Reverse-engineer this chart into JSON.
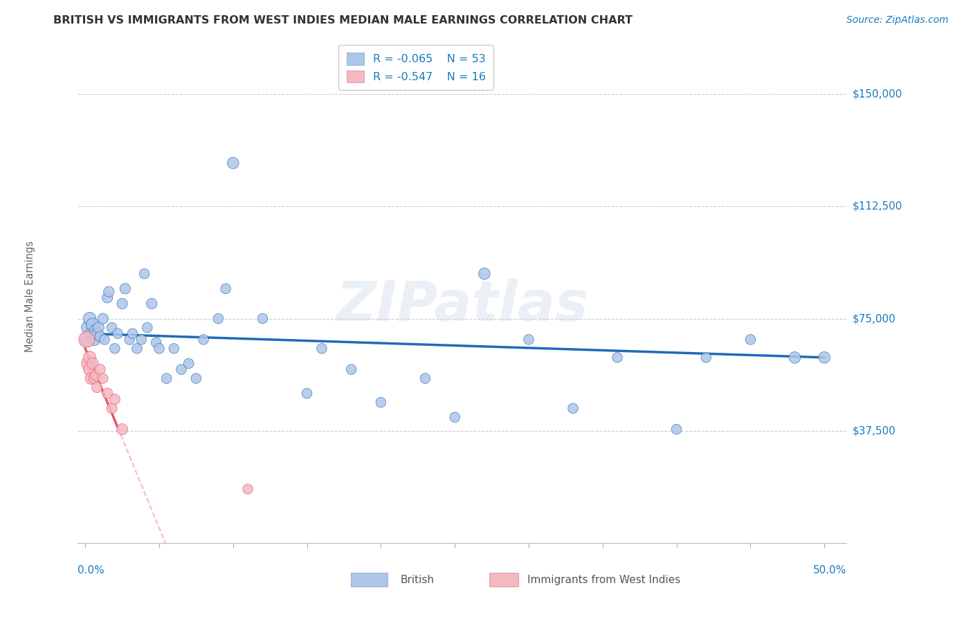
{
  "title": "BRITISH VS IMMIGRANTS FROM WEST INDIES MEDIAN MALE EARNINGS CORRELATION CHART",
  "source": "Source: ZipAtlas.com",
  "ylabel": "Median Male Earnings",
  "y_tick_labels": [
    "$37,500",
    "$75,000",
    "$112,500",
    "$150,000"
  ],
  "y_tick_values": [
    37500,
    75000,
    112500,
    150000
  ],
  "y_min": 0,
  "y_max": 165000,
  "x_min": -0.005,
  "x_max": 0.515,
  "watermark": "ZIPatlas",
  "legend_r1": "R = -0.065",
  "legend_n1": "N = 53",
  "legend_r2": "R = -0.547",
  "legend_n2": "N = 16",
  "legend_label1": "British",
  "legend_label2": "Immigrants from West Indies",
  "color_british": "#aec6e8",
  "color_wi": "#f4b8c1",
  "color_line_british": "#1f6ab5",
  "color_line_wi": "#e8536a",
  "color_axis_labels": "#1a7abf",
  "british_x": [
    0.001,
    0.002,
    0.003,
    0.004,
    0.005,
    0.006,
    0.007,
    0.008,
    0.009,
    0.01,
    0.012,
    0.013,
    0.015,
    0.016,
    0.018,
    0.02,
    0.022,
    0.025,
    0.027,
    0.03,
    0.032,
    0.035,
    0.038,
    0.04,
    0.042,
    0.045,
    0.048,
    0.05,
    0.055,
    0.06,
    0.065,
    0.07,
    0.075,
    0.08,
    0.09,
    0.095,
    0.1,
    0.12,
    0.15,
    0.16,
    0.18,
    0.2,
    0.23,
    0.25,
    0.27,
    0.3,
    0.33,
    0.36,
    0.4,
    0.42,
    0.45,
    0.48,
    0.5
  ],
  "british_y": [
    68000,
    72000,
    75000,
    70000,
    73000,
    68000,
    71000,
    70000,
    72000,
    69000,
    75000,
    68000,
    82000,
    84000,
    72000,
    65000,
    70000,
    80000,
    85000,
    68000,
    70000,
    65000,
    68000,
    90000,
    72000,
    80000,
    67000,
    65000,
    55000,
    65000,
    58000,
    60000,
    55000,
    68000,
    75000,
    85000,
    127000,
    75000,
    50000,
    65000,
    58000,
    47000,
    55000,
    42000,
    90000,
    68000,
    45000,
    62000,
    38000,
    62000,
    68000,
    62000,
    62000
  ],
  "wi_x": [
    0.001,
    0.002,
    0.003,
    0.003,
    0.004,
    0.005,
    0.006,
    0.007,
    0.008,
    0.01,
    0.012,
    0.015,
    0.018,
    0.02,
    0.025,
    0.11
  ],
  "wi_y": [
    68000,
    60000,
    62000,
    58000,
    55000,
    60000,
    55000,
    56000,
    52000,
    58000,
    55000,
    50000,
    45000,
    48000,
    38000,
    18000
  ],
  "british_bubble_sizes": [
    200,
    180,
    160,
    140,
    160,
    150,
    140,
    130,
    120,
    110,
    110,
    100,
    110,
    110,
    100,
    100,
    100,
    110,
    110,
    100,
    100,
    100,
    100,
    100,
    100,
    110,
    100,
    100,
    100,
    100,
    100,
    100,
    100,
    100,
    100,
    100,
    130,
    100,
    100,
    100,
    100,
    100,
    100,
    100,
    130,
    100,
    100,
    100,
    100,
    100,
    100,
    130,
    130
  ],
  "wi_bubble_sizes": [
    250,
    180,
    160,
    150,
    140,
    130,
    120,
    110,
    110,
    110,
    100,
    110,
    110,
    110,
    120,
    100
  ]
}
